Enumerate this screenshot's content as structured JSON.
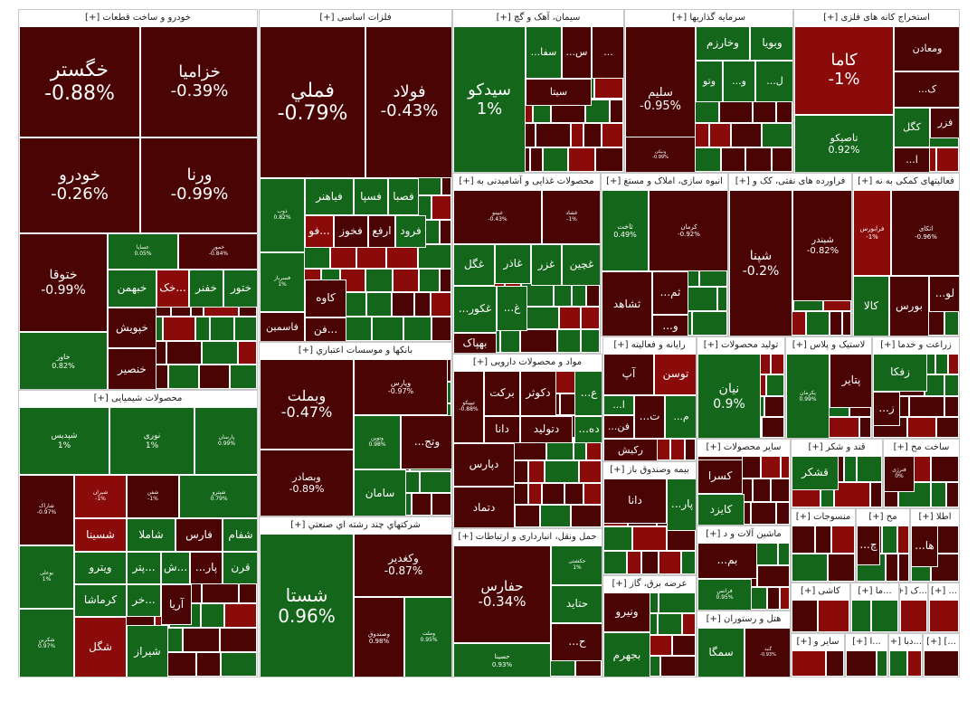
{
  "colors": {
    "up": "#14661a",
    "down": "#4a0404",
    "strong_down": "#8b0a0a",
    "border": "#ffffff"
  },
  "expand_marker": "[+]",
  "chart_data": {
    "type": "treemap",
    "sectors": [
      {
        "name": "خودرو و ساخت قطعات",
        "tiles": [
          {
            "symbol": "خگستر",
            "change": "-0.88%"
          },
          {
            "symbol": "خزامیا",
            "change": "-0.39%"
          },
          {
            "symbol": "خودرو",
            "change": "-0.26%"
          },
          {
            "symbol": "ورنا",
            "change": "-0.99%"
          },
          {
            "symbol": "ختوقا",
            "change": "-0.99%"
          },
          {
            "symbol": "عسایا",
            "change": "0.05%"
          },
          {
            "symbol": "خمور",
            "change": "-0.84%"
          },
          {
            "symbol": "خاور",
            "change": "0.82%"
          },
          {
            "symbol": "خبهمن",
            "change": ""
          },
          {
            "symbol": "خک...",
            "change": ""
          },
          {
            "symbol": "خفنر",
            "change": ""
          },
          {
            "symbol": "ختور",
            "change": ""
          },
          {
            "symbol": "خپویش",
            "change": ""
          },
          {
            "symbol": "خنصیر",
            "change": ""
          }
        ]
      },
      {
        "name": "محصولات شیمیایی",
        "tiles": [
          {
            "symbol": "شپدیس",
            "change": "1%"
          },
          {
            "symbol": "نوری",
            "change": "1%"
          },
          {
            "symbol": "پارسان",
            "change": "0.99%"
          },
          {
            "symbol": "شاراک",
            "change": "-0.97%"
          },
          {
            "symbol": "شیران",
            "change": "-1%"
          },
          {
            "symbol": "شفن",
            "change": "-1%"
          },
          {
            "symbol": "شپترو",
            "change": "0.79%"
          },
          {
            "symbol": "شسینا",
            "change": ""
          },
          {
            "symbol": "شاملا",
            "change": ""
          },
          {
            "symbol": "فارس",
            "change": ""
          },
          {
            "symbol": "شفام",
            "change": ""
          },
          {
            "symbol": "بوعلی",
            "change": "1%"
          },
          {
            "symbol": "ویترو",
            "change": ""
          },
          {
            "symbol": "پتر...",
            "change": ""
          },
          {
            "symbol": "ش...",
            "change": ""
          },
          {
            "symbol": "...پار",
            "change": ""
          },
          {
            "symbol": "قرن",
            "change": ""
          },
          {
            "symbol": "کرماشا",
            "change": ""
          },
          {
            "symbol": "خر...",
            "change": ""
          },
          {
            "symbol": "آریا",
            "change": ""
          },
          {
            "symbol": "شکربن",
            "change": "0.97%"
          },
          {
            "symbol": "شگل",
            "change": ""
          },
          {
            "symbol": "شیراز",
            "change": ""
          }
        ]
      },
      {
        "name": "فلزات اساسی",
        "tiles": [
          {
            "symbol": "فملي",
            "change": "-0.79%"
          },
          {
            "symbol": "فولاد",
            "change": "-0.43%"
          },
          {
            "symbol": "ذوب",
            "change": "0.82%"
          },
          {
            "symbol": "فباهنر",
            "change": ""
          },
          {
            "symbol": "فسپا",
            "change": ""
          },
          {
            "symbol": "فصبا",
            "change": ""
          },
          {
            "symbol": "فو...",
            "change": ""
          },
          {
            "symbol": "فخوز",
            "change": ""
          },
          {
            "symbol": "ارفع",
            "change": ""
          },
          {
            "symbol": "فرود",
            "change": ""
          },
          {
            "symbol": "فسرباز",
            "change": "1%"
          },
          {
            "symbol": "کاوه",
            "change": ""
          },
          {
            "symbol": "فن...",
            "change": ""
          },
          {
            "symbol": "فاسمین",
            "change": ""
          }
        ]
      },
      {
        "name": "بانكها و موسسات اعتباري",
        "tiles": [
          {
            "symbol": "وبملت",
            "change": "-0.47%"
          },
          {
            "symbol": "وپارس",
            "change": "-0.97%"
          },
          {
            "symbol": "وتوين",
            "change": "0.98%"
          },
          {
            "symbol": "...وتج",
            "change": ""
          },
          {
            "symbol": "وبصادر",
            "change": "-0.89%"
          },
          {
            "symbol": "سامان",
            "change": ""
          }
        ]
      },
      {
        "name": "شرکتهاي چند رشته اي صنعتي",
        "tiles": [
          {
            "symbol": "شستا",
            "change": "0.96%"
          },
          {
            "symbol": "وكغدير",
            "change": "-0.87%"
          },
          {
            "symbol": "وصندوق",
            "change": "0.98%"
          },
          {
            "symbol": "وملت",
            "change": "0.95%"
          }
        ]
      },
      {
        "name": "سیمان، آهک و گچ",
        "tiles": [
          {
            "symbol": "سیدکو",
            "change": "1%"
          },
          {
            "symbol": "...سفا",
            "change": ""
          },
          {
            "symbol": "...س",
            "change": ""
          },
          {
            "symbol": "...",
            "change": ""
          },
          {
            "symbol": "سیتا",
            "change": ""
          }
        ]
      },
      {
        "name": "سرمایه گذاریها",
        "tiles": [
          {
            "symbol": "سلیم",
            "change": "-0.95%"
          },
          {
            "symbol": "وخارزم",
            "change": ""
          },
          {
            "symbol": "وبویا",
            "change": ""
          },
          {
            "symbol": "وتو",
            "change": ""
          },
          {
            "symbol": "...و",
            "change": ""
          },
          {
            "symbol": "...ل",
            "change": ""
          },
          {
            "symbol": "ونیکی",
            "change": "-0.99%"
          }
        ]
      },
      {
        "name": "استخراج کانه های فلزی",
        "tiles": [
          {
            "symbol": "کاما",
            "change": "-1%"
          },
          {
            "symbol": "ومعادن",
            "change": ""
          },
          {
            "symbol": "...ک",
            "change": ""
          },
          {
            "symbol": "فزر",
            "change": ""
          },
          {
            "symbol": "تاصیکو",
            "change": "0.92%"
          },
          {
            "symbol": "کگل",
            "change": ""
          },
          {
            "symbol": "...ا",
            "change": ""
          }
        ]
      },
      {
        "name": "محصولات غذایی و آشامیدنی به",
        "tiles": [
          {
            "symbol": "غبینو",
            "change": "-0.43%"
          },
          {
            "symbol": "غشاد",
            "change": "-1%"
          },
          {
            "symbol": "غگل",
            "change": ""
          },
          {
            "symbol": "غاذر",
            "change": ""
          },
          {
            "symbol": "غزر",
            "change": ""
          },
          {
            "symbol": "غچین",
            "change": ""
          },
          {
            "symbol": "...غکور",
            "change": ""
          },
          {
            "symbol": "...غ",
            "change": ""
          },
          {
            "symbol": "بهپاک",
            "change": ""
          }
        ]
      },
      {
        "name": "انبوه سازی، املاک و مستغ",
        "tiles": [
          {
            "symbol": "ثاخت",
            "change": "0.49%"
          },
          {
            "symbol": "کرمان",
            "change": "-0.92%"
          },
          {
            "symbol": "ثشاهد",
            "change": ""
          },
          {
            "symbol": "...ثم",
            "change": ""
          },
          {
            "symbol": "...و",
            "change": ""
          }
        ]
      },
      {
        "name": "فراورده های نفتی، کک و",
        "tiles": [
          {
            "symbol": "شپنا",
            "change": "-0.2%"
          },
          {
            "symbol": "شبندر",
            "change": "-0.82%"
          }
        ]
      },
      {
        "name": "فعالیتهای کمکی به نه",
        "tiles": [
          {
            "symbol": "فرابورس",
            "change": "-1%"
          },
          {
            "symbol": "اتکای",
            "change": "-0.96%"
          },
          {
            "symbol": "...لو",
            "change": ""
          },
          {
            "symbol": "بورس",
            "change": ""
          },
          {
            "symbol": "کالا",
            "change": ""
          }
        ]
      },
      {
        "name": "مواد و محصولات دارویی",
        "tiles": [
          {
            "symbol": "برکت",
            "change": ""
          },
          {
            "symbol": "دکوثر",
            "change": ""
          },
          {
            "symbol": "...ع",
            "change": ""
          },
          {
            "symbol": "تیپیکو",
            "change": "-0.88%"
          },
          {
            "symbol": "دانا",
            "change": ""
          },
          {
            "symbol": "دتولید",
            "change": ""
          },
          {
            "symbol": "...ده",
            "change": ""
          },
          {
            "symbol": "دپارس",
            "change": ""
          },
          {
            "symbol": "دتماد",
            "change": ""
          }
        ]
      },
      {
        "name": "رایانه و فعالیته",
        "tiles": [
          {
            "symbol": "آپ",
            "change": ""
          },
          {
            "symbol": "توسن",
            "change": ""
          },
          {
            "symbol": "...ا",
            "change": ""
          },
          {
            "symbol": "...فن",
            "change": ""
          },
          {
            "symbol": "...ت",
            "change": ""
          },
          {
            "symbol": "...م",
            "change": ""
          },
          {
            "symbol": "رکیش",
            "change": ""
          }
        ]
      },
      {
        "name": "تولید محصولات",
        "tiles": [
          {
            "symbol": "نیان",
            "change": "0.9%"
          }
        ]
      },
      {
        "name": "لاستیک و پلاس",
        "tiles": [
          {
            "symbol": "پکرمان",
            "change": "0.99%"
          },
          {
            "symbol": "پتایر",
            "change": ""
          }
        ]
      },
      {
        "name": "زراعت و خدما",
        "tiles": [
          {
            "symbol": "زفکا",
            "change": ""
          },
          {
            "symbol": "...ز",
            "change": ""
          }
        ]
      },
      {
        "name": "بیمه وصندوق باز",
        "tiles": [
          {
            "symbol": "دانا",
            "change": ""
          },
          {
            "symbol": "...پار",
            "change": ""
          }
        ]
      },
      {
        "name": "سایر محصولات",
        "tiles": [
          {
            "symbol": "...ک",
            "change": ""
          },
          {
            "symbol": "کسرا",
            "change": ""
          },
          {
            "symbol": "کایزد",
            "change": ""
          }
        ]
      },
      {
        "name": "قند و شکر",
        "tiles": [
          {
            "symbol": "قشکر",
            "change": ""
          }
        ]
      },
      {
        "name": "ساخت مح",
        "tiles": [
          {
            "symbol": "فنرژی",
            "change": "0%"
          }
        ]
      },
      {
        "name": "حمل ونقل، انبارداری و ارتباطات",
        "tiles": [
          {
            "symbol": "حفارس",
            "change": "-0.34%"
          },
          {
            "symbol": "حتاید",
            "change": ""
          },
          {
            "symbol": "حسینا",
            "change": "0.93%"
          },
          {
            "symbol": "...ح",
            "change": ""
          },
          {
            "symbol": "حکشتی",
            "change": "1%"
          }
        ]
      },
      {
        "name": "ماشین آلات و د",
        "tiles": [
          {
            "symbol": "...بم",
            "change": ""
          },
          {
            "symbol": "فرانس",
            "change": "0.95%"
          }
        ]
      },
      {
        "name": "عرضه برق، گاز",
        "tiles": [
          {
            "symbol": "ونیرو",
            "change": ""
          },
          {
            "symbol": "بجهرم",
            "change": ""
          }
        ]
      },
      {
        "name": "هتل و رستوران",
        "tiles": [
          {
            "symbol": "سمگا",
            "change": ""
          },
          {
            "symbol": "گنبد",
            "change": "-0.93%"
          }
        ]
      },
      {
        "name": "منسوجات",
        "tiles": []
      },
      {
        "name": "مح",
        "tiles": [
          {
            "symbol": "...چ",
            "change": ""
          }
        ]
      },
      {
        "name": "اطلا",
        "tiles": [
          {
            "symbol": "...ها",
            "change": ""
          }
        ]
      },
      {
        "name": "کاشی",
        "tiles": []
      },
      {
        "name": "...ما",
        "tiles": []
      },
      {
        "name": "...ک",
        "tiles": []
      },
      {
        "name": "...",
        "tiles": []
      },
      {
        "name": "سایر و",
        "tiles": []
      },
      {
        "name": "...ا",
        "tiles": []
      },
      {
        "name": "...دبا",
        "tiles": []
      },
      {
        "name": "...]",
        "tiles": []
      }
    ]
  }
}
